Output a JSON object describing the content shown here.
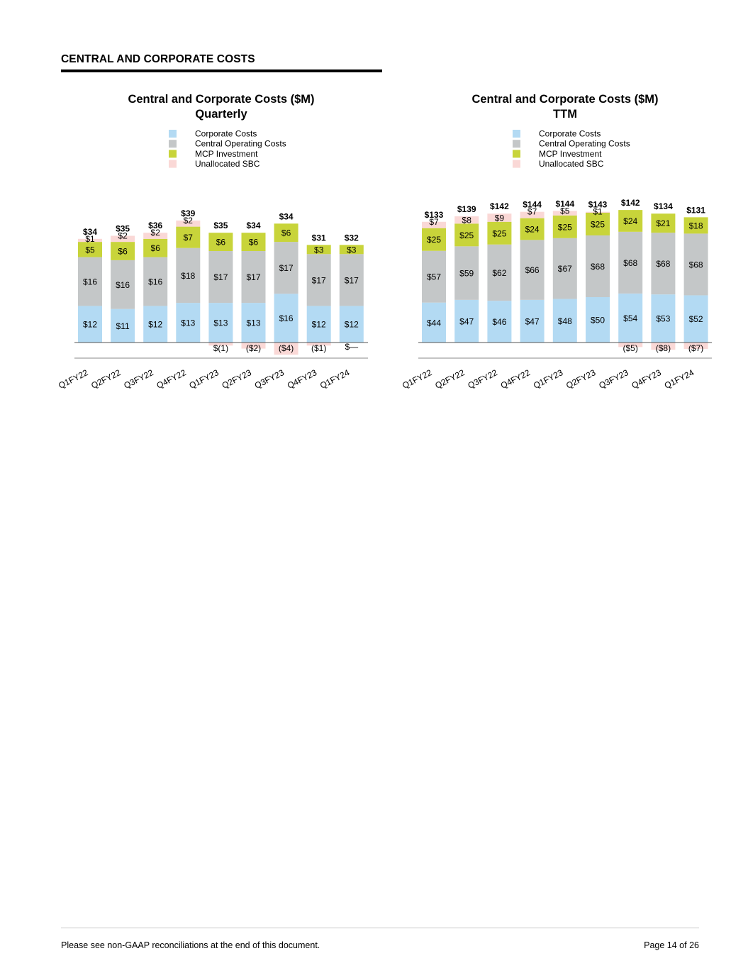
{
  "section": {
    "title": "CENTRAL AND CORPORATE COSTS"
  },
  "footer": {
    "note": "Please see non-GAAP reconciliations at the end of this document.",
    "page": "Page 14 of 26"
  },
  "colors": {
    "corporate": "#b3daf3",
    "central_operating": "#c4c7c8",
    "mcp": "#c8d43a",
    "sbc": "#fad8d6",
    "axis": "#8a8a8a"
  },
  "chart_data": [
    {
      "type": "bar",
      "stacked": true,
      "title": "Central and Corporate Costs ($M)",
      "subtitle": "Quarterly",
      "legend_position": "top",
      "categories": [
        "Q1FY22",
        "Q2FY22",
        "Q3FY22",
        "Q4FY22",
        "Q1FY23",
        "Q2FY23",
        "Q3FY23",
        "Q4FY23",
        "Q1FY24"
      ],
      "totals": [
        34,
        35,
        36,
        39,
        35,
        34,
        34,
        31,
        32
      ],
      "total_labels": [
        "$34",
        "$35",
        "$36",
        "$39",
        "$35",
        "$34",
        "$34",
        "$31",
        "$32"
      ],
      "series": [
        {
          "name": "Corporate Costs",
          "color_key": "corporate",
          "values": [
            12,
            11,
            12,
            13,
            13,
            13,
            16,
            12,
            12
          ],
          "labels": [
            "$12",
            "$11",
            "$12",
            "$13",
            "$13",
            "$13",
            "$16",
            "$12",
            "$12"
          ]
        },
        {
          "name": "Central Operating Costs",
          "color_key": "central_operating",
          "values": [
            16,
            16,
            16,
            18,
            17,
            17,
            17,
            17,
            17
          ],
          "labels": [
            "$16",
            "$16",
            "$16",
            "$18",
            "$17",
            "$17",
            "$17",
            "$17",
            "$17"
          ]
        },
        {
          "name": "MCP Investment",
          "color_key": "mcp",
          "values": [
            5,
            6,
            6,
            7,
            6,
            6,
            6,
            3,
            3
          ],
          "labels": [
            "$5",
            "$6",
            "$6",
            "$7",
            "$6",
            "$6",
            "$6",
            "$3",
            "$3"
          ]
        },
        {
          "name": "Unallocated SBC",
          "color_key": "sbc",
          "values": [
            1,
            2,
            2,
            2,
            -1,
            -2,
            -4,
            -1,
            0
          ],
          "labels": [
            "$1",
            "$2",
            "$2",
            "$2",
            "$(1)",
            "($2)",
            "($4)",
            "($1)",
            "$—"
          ]
        }
      ],
      "ylim": [
        -4,
        39
      ]
    },
    {
      "type": "bar",
      "stacked": true,
      "title": "Central and Corporate Costs ($M)",
      "subtitle": "TTM",
      "legend_position": "top",
      "categories": [
        "Q1FY22",
        "Q2FY22",
        "Q3FY22",
        "Q4FY22",
        "Q1FY23",
        "Q2FY23",
        "Q3FY23",
        "Q4FY23",
        "Q1FY24"
      ],
      "totals": [
        133,
        139,
        142,
        144,
        144,
        143,
        142,
        134,
        131
      ],
      "total_labels": [
        "$133",
        "$139",
        "$142",
        "$144",
        "$144",
        "$143",
        "$142",
        "$134",
        "$131"
      ],
      "series": [
        {
          "name": "Corporate Costs",
          "color_key": "corporate",
          "values": [
            44,
            47,
            46,
            47,
            48,
            50,
            54,
            53,
            52
          ],
          "labels": [
            "$44",
            "$47",
            "$46",
            "$47",
            "$48",
            "$50",
            "$54",
            "$53",
            "$52"
          ]
        },
        {
          "name": "Central Operating Costs",
          "color_key": "central_operating",
          "values": [
            57,
            59,
            62,
            66,
            67,
            68,
            68,
            68,
            68
          ],
          "labels": [
            "$57",
            "$59",
            "$62",
            "$66",
            "$67",
            "$68",
            "$68",
            "$68",
            "$68"
          ]
        },
        {
          "name": "MCP Investment",
          "color_key": "mcp",
          "values": [
            25,
            25,
            25,
            24,
            25,
            25,
            24,
            21,
            18
          ],
          "labels": [
            "$25",
            "$25",
            "$25",
            "$24",
            "$25",
            "$25",
            "$24",
            "$21",
            "$18"
          ]
        },
        {
          "name": "Unallocated SBC",
          "color_key": "sbc",
          "values": [
            7,
            8,
            9,
            7,
            5,
            1,
            -5,
            -8,
            -7
          ],
          "labels": [
            "$7",
            "$8",
            "$9",
            "$7",
            "$5",
            "$1",
            "($5)",
            "($8)",
            "($7)"
          ]
        }
      ],
      "ylim": [
        -8,
        144
      ]
    }
  ]
}
